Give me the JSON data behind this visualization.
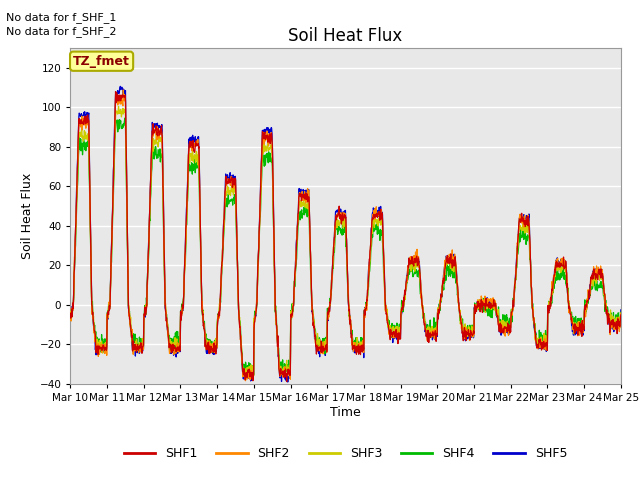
{
  "title": "Soil Heat Flux",
  "ylabel": "Soil Heat Flux",
  "xlabel": "Time",
  "top_note1": "No data for f_SHF_1",
  "top_note2": "No data for f_SHF_2",
  "box_label": "TZ_fmet",
  "ylim": [
    -40,
    130
  ],
  "yticks": [
    -40,
    -20,
    0,
    20,
    40,
    60,
    80,
    100,
    120
  ],
  "series_colors": {
    "SHF1": "#cc0000",
    "SHF2": "#ff8800",
    "SHF3": "#cccc00",
    "SHF4": "#00bb00",
    "SHF5": "#0000cc"
  },
  "plot_bg_color": "#e8e8e8",
  "day_peaks": [
    93,
    105,
    88,
    81,
    62,
    85,
    55,
    45,
    45,
    22,
    22,
    0,
    42,
    20,
    15
  ],
  "day_troughs": [
    -22,
    -22,
    -22,
    -22,
    -35,
    -35,
    -22,
    -22,
    -15,
    -15,
    -15,
    -12,
    -20,
    -12,
    -10
  ],
  "n_days": 15,
  "pts_per_day": 100
}
